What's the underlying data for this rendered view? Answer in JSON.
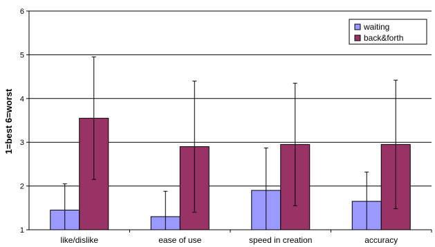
{
  "chart_data": {
    "type": "bar",
    "title": "",
    "xlabel": "",
    "ylabel": "1=best 6=worst",
    "ylim": [
      1,
      6
    ],
    "yticks": [
      1,
      2,
      3,
      4,
      5,
      6
    ],
    "grid": "horizontal",
    "legend_position": "top-right",
    "categories": [
      "like/dislike",
      "ease of use",
      "speed in creation",
      "accuracy"
    ],
    "series": [
      {
        "name": "waiting",
        "color": "#9999FF",
        "values": [
          1.45,
          1.3,
          1.9,
          1.65
        ],
        "error_low": [
          1.0,
          1.0,
          1.0,
          1.0
        ],
        "error_high": [
          2.05,
          1.88,
          2.87,
          2.32
        ]
      },
      {
        "name": "back&forth",
        "color": "#993366",
        "values": [
          3.55,
          2.9,
          2.95,
          2.95
        ],
        "error_low": [
          2.15,
          1.4,
          1.55,
          1.48
        ],
        "error_high": [
          4.95,
          4.4,
          4.35,
          4.42
        ]
      }
    ]
  }
}
